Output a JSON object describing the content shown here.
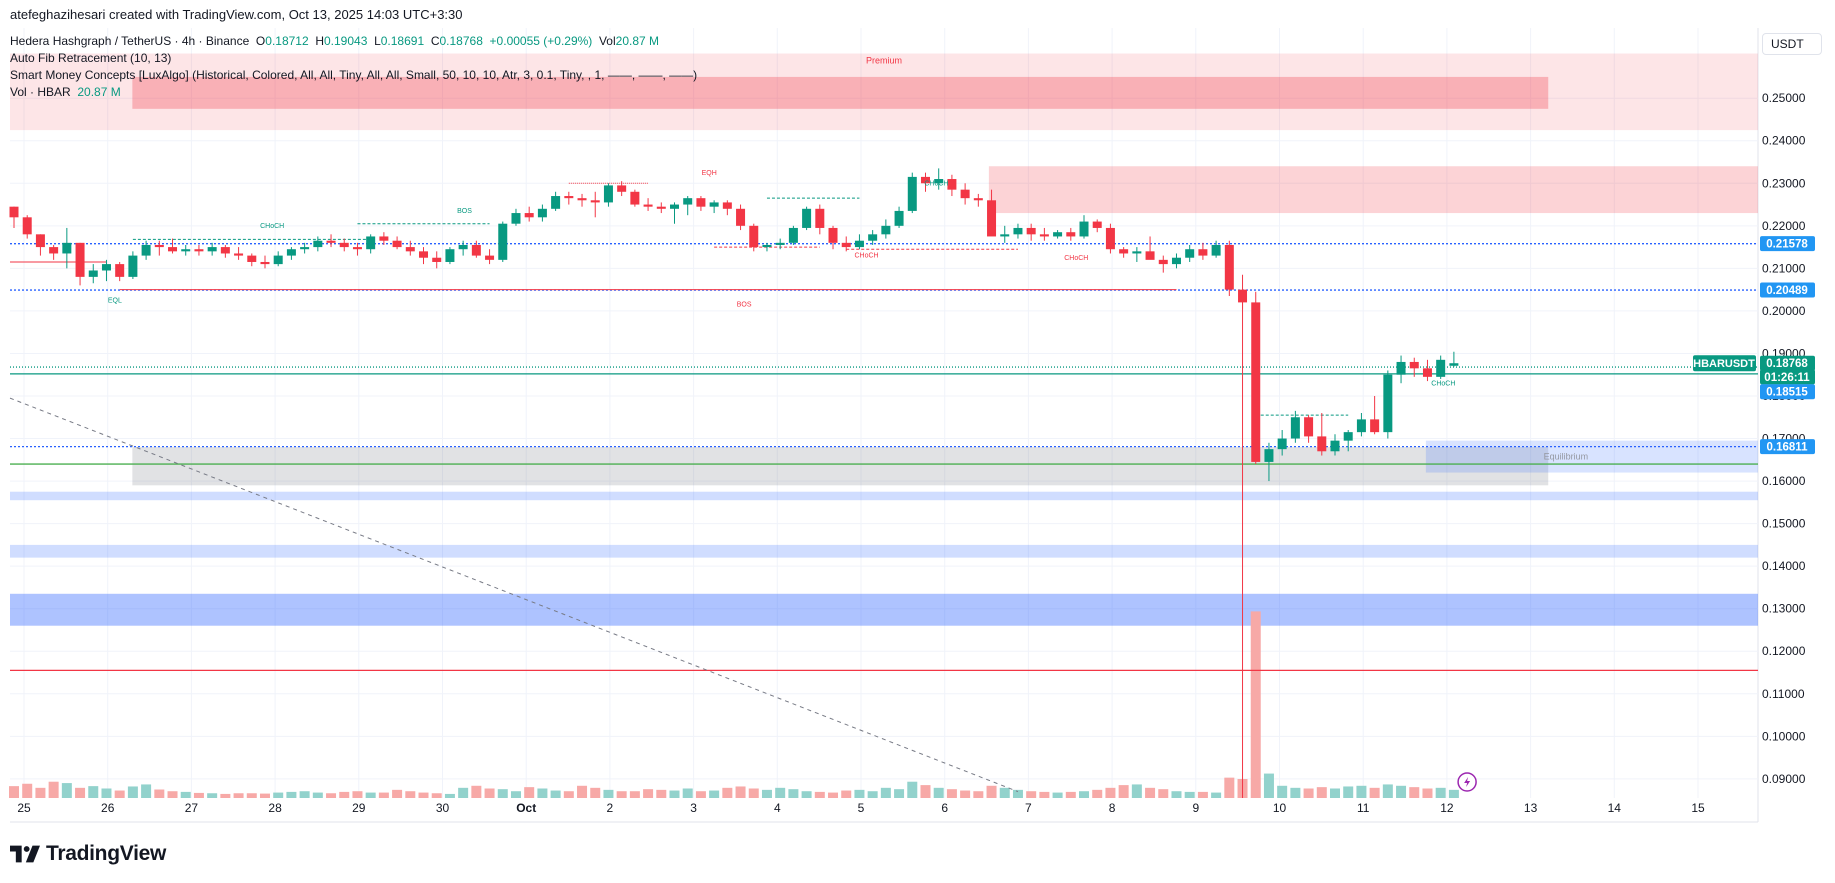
{
  "header": {
    "author_line": "atefeghazihesari created with TradingView.com, Oct 13, 2025 14:03 UTC+3:30"
  },
  "legend": {
    "title": "Hedera Hashgraph / TetherUS · 4h · Binance",
    "o_label": "O",
    "o": "0.18712",
    "h_label": "H",
    "h": "0.19043",
    "l_label": "L",
    "l": "0.18691",
    "c_label": "C",
    "c": "0.18768",
    "change": "+0.00055 (+0.29%)",
    "vol_label": "Vol",
    "vol": "20.87 M",
    "fib": "Auto Fib Retracement (10, 13)",
    "smc": "Smart Money Concepts [LuxAlgo] (Historical, Colored, All, All, Tiny, All, All, Small, 50, 10, 10, Atr, 3, 0.1, Tiny, , 1, ——, ——, ——)",
    "vol_study": "Vol · HBAR",
    "vol_study_value": "20.87 M"
  },
  "currency": "USDT",
  "brand": "TradingView",
  "colors": {
    "up": "#089981",
    "down": "#f23645",
    "vol_up": "#92d2cc",
    "vol_down": "#f7a9a7",
    "blue_line": "#2962ff",
    "badge_blue": "#2196f3",
    "badge_green": "#089981"
  },
  "chart_data": {
    "type": "candlestick",
    "symbol": "HBARUSDT",
    "timeframe": "4h",
    "ylim": [
      0.0855,
      0.2665
    ],
    "y_ticks": [
      "0.25000",
      "0.24000",
      "0.23000",
      "0.22000",
      "0.21000",
      "0.20000",
      "0.19000",
      "0.18000",
      "0.17000",
      "0.16000",
      "0.15000",
      "0.14000",
      "0.13000",
      "0.12000",
      "0.11000",
      "0.10000",
      "0.09000"
    ],
    "x_ticks": [
      "25",
      "26",
      "27",
      "28",
      "29",
      "30",
      "Oct",
      "2",
      "3",
      "4",
      "5",
      "6",
      "7",
      "8",
      "9",
      "10",
      "11",
      "12",
      "13",
      "14",
      "15"
    ],
    "candles": [
      [
        0.2245,
        0.2245,
        0.2195,
        0.222
      ],
      [
        0.222,
        0.2225,
        0.217,
        0.218
      ],
      [
        0.218,
        0.218,
        0.213,
        0.215
      ],
      [
        0.215,
        0.2155,
        0.212,
        0.2135
      ],
      [
        0.2135,
        0.2195,
        0.21,
        0.216
      ],
      [
        0.216,
        0.216,
        0.206,
        0.208
      ],
      [
        0.208,
        0.211,
        0.2065,
        0.2095
      ],
      [
        0.2095,
        0.212,
        0.207,
        0.211
      ],
      [
        0.211,
        0.2115,
        0.207,
        0.208
      ],
      [
        0.208,
        0.214,
        0.2075,
        0.213
      ],
      [
        0.213,
        0.2165,
        0.212,
        0.2155
      ],
      [
        0.2155,
        0.2165,
        0.213,
        0.215
      ],
      [
        0.215,
        0.217,
        0.2135,
        0.214
      ],
      [
        0.214,
        0.2155,
        0.213,
        0.2145
      ],
      [
        0.2145,
        0.2155,
        0.213,
        0.214
      ],
      [
        0.214,
        0.216,
        0.213,
        0.215
      ],
      [
        0.215,
        0.2155,
        0.2125,
        0.2135
      ],
      [
        0.2135,
        0.215,
        0.212,
        0.213
      ],
      [
        0.213,
        0.2135,
        0.2105,
        0.2115
      ],
      [
        0.2115,
        0.213,
        0.21,
        0.211
      ],
      [
        0.211,
        0.214,
        0.2105,
        0.213
      ],
      [
        0.213,
        0.215,
        0.212,
        0.2145
      ],
      [
        0.2145,
        0.216,
        0.2135,
        0.215
      ],
      [
        0.215,
        0.2175,
        0.214,
        0.2165
      ],
      [
        0.2165,
        0.218,
        0.215,
        0.216
      ],
      [
        0.216,
        0.217,
        0.214,
        0.215
      ],
      [
        0.215,
        0.216,
        0.213,
        0.2145
      ],
      [
        0.2145,
        0.218,
        0.2135,
        0.2175
      ],
      [
        0.2175,
        0.2185,
        0.2155,
        0.2165
      ],
      [
        0.2165,
        0.2175,
        0.2145,
        0.215
      ],
      [
        0.215,
        0.2165,
        0.213,
        0.214
      ],
      [
        0.214,
        0.215,
        0.211,
        0.2125
      ],
      [
        0.2125,
        0.214,
        0.21,
        0.2115
      ],
      [
        0.2115,
        0.215,
        0.211,
        0.2145
      ],
      [
        0.2145,
        0.2165,
        0.213,
        0.2155
      ],
      [
        0.2155,
        0.2165,
        0.2125,
        0.213
      ],
      [
        0.213,
        0.2145,
        0.211,
        0.212
      ],
      [
        0.212,
        0.221,
        0.2115,
        0.2205
      ],
      [
        0.2205,
        0.224,
        0.22,
        0.223
      ],
      [
        0.223,
        0.2245,
        0.221,
        0.222
      ],
      [
        0.222,
        0.225,
        0.221,
        0.224
      ],
      [
        0.224,
        0.228,
        0.2235,
        0.227
      ],
      [
        0.227,
        0.228,
        0.225,
        0.2265
      ],
      [
        0.2265,
        0.2275,
        0.2245,
        0.226
      ],
      [
        0.226,
        0.228,
        0.222,
        0.2255
      ],
      [
        0.2255,
        0.23,
        0.2245,
        0.2295
      ],
      [
        0.2295,
        0.2305,
        0.227,
        0.228
      ],
      [
        0.228,
        0.2285,
        0.2245,
        0.225
      ],
      [
        0.225,
        0.2265,
        0.2235,
        0.2245
      ],
      [
        0.2245,
        0.2255,
        0.223,
        0.224
      ],
      [
        0.224,
        0.2255,
        0.2205,
        0.225
      ],
      [
        0.225,
        0.227,
        0.2225,
        0.2265
      ],
      [
        0.2265,
        0.227,
        0.2235,
        0.2245
      ],
      [
        0.2245,
        0.226,
        0.223,
        0.2255
      ],
      [
        0.2255,
        0.226,
        0.2225,
        0.224
      ],
      [
        0.224,
        0.225,
        0.219,
        0.22
      ],
      [
        0.22,
        0.2205,
        0.214,
        0.215
      ],
      [
        0.215,
        0.216,
        0.214,
        0.2155
      ],
      [
        0.2155,
        0.217,
        0.2145,
        0.216
      ],
      [
        0.216,
        0.22,
        0.2155,
        0.2195
      ],
      [
        0.2195,
        0.2245,
        0.219,
        0.224
      ],
      [
        0.224,
        0.225,
        0.218,
        0.2195
      ],
      [
        0.2195,
        0.22,
        0.2145,
        0.216
      ],
      [
        0.216,
        0.2175,
        0.214,
        0.215
      ],
      [
        0.215,
        0.218,
        0.2145,
        0.2165
      ],
      [
        0.2165,
        0.219,
        0.2155,
        0.218
      ],
      [
        0.218,
        0.2215,
        0.217,
        0.22
      ],
      [
        0.22,
        0.2245,
        0.2195,
        0.2235
      ],
      [
        0.2235,
        0.2325,
        0.223,
        0.2315
      ],
      [
        0.2315,
        0.2325,
        0.228,
        0.23
      ],
      [
        0.23,
        0.2335,
        0.2285,
        0.231
      ],
      [
        0.231,
        0.232,
        0.227,
        0.2285
      ],
      [
        0.2285,
        0.23,
        0.225,
        0.2265
      ],
      [
        0.2265,
        0.2275,
        0.2245,
        0.226
      ],
      [
        0.226,
        0.2285,
        0.218,
        0.2175
      ],
      [
        0.2175,
        0.22,
        0.216,
        0.218
      ],
      [
        0.218,
        0.2205,
        0.217,
        0.2195
      ],
      [
        0.2195,
        0.2205,
        0.2165,
        0.218
      ],
      [
        0.218,
        0.2195,
        0.2165,
        0.2175
      ],
      [
        0.2175,
        0.219,
        0.217,
        0.2185
      ],
      [
        0.2185,
        0.2195,
        0.2165,
        0.2175
      ],
      [
        0.2175,
        0.2225,
        0.217,
        0.221
      ],
      [
        0.221,
        0.2215,
        0.2185,
        0.2195
      ],
      [
        0.2195,
        0.2205,
        0.2135,
        0.2145
      ],
      [
        0.2145,
        0.215,
        0.2125,
        0.2135
      ],
      [
        0.2135,
        0.215,
        0.2115,
        0.214
      ],
      [
        0.214,
        0.2175,
        0.213,
        0.212
      ],
      [
        0.212,
        0.213,
        0.209,
        0.211
      ],
      [
        0.211,
        0.2135,
        0.21,
        0.2125
      ],
      [
        0.2125,
        0.2155,
        0.2115,
        0.2145
      ],
      [
        0.2145,
        0.216,
        0.212,
        0.213
      ],
      [
        0.213,
        0.2165,
        0.2125,
        0.2155
      ],
      [
        0.2155,
        0.2165,
        0.2035,
        0.205
      ],
      [
        0.205,
        0.2085,
        0.2005,
        0.202
      ],
      [
        0.202,
        0.2045,
        0.164,
        0.1645
      ],
      [
        0.1645,
        0.169,
        0.16,
        0.1675
      ],
      [
        0.1675,
        0.172,
        0.166,
        0.17
      ],
      [
        0.17,
        0.1765,
        0.169,
        0.175
      ],
      [
        0.175,
        0.1755,
        0.169,
        0.1705
      ],
      [
        0.1705,
        0.176,
        0.166,
        0.167
      ],
      [
        0.167,
        0.171,
        0.166,
        0.1695
      ],
      [
        0.1695,
        0.172,
        0.167,
        0.1715
      ],
      [
        0.1715,
        0.176,
        0.1705,
        0.1745
      ],
      [
        0.1745,
        0.18,
        0.171,
        0.1715
      ],
      [
        0.1715,
        0.186,
        0.17,
        0.185
      ],
      [
        0.185,
        0.1895,
        0.183,
        0.188
      ],
      [
        0.188,
        0.189,
        0.1845,
        0.1865
      ],
      [
        0.1865,
        0.1885,
        0.1835,
        0.1845
      ],
      [
        0.1845,
        0.1895,
        0.184,
        0.1885
      ],
      [
        0.1871,
        0.1904,
        0.1869,
        0.1877
      ]
    ],
    "volume": [
      35,
      42,
      30,
      48,
      44,
      30,
      35,
      28,
      22,
      34,
      40,
      25,
      20,
      18,
      15,
      14,
      12,
      14,
      14,
      13,
      16,
      18,
      20,
      16,
      14,
      18,
      20,
      16,
      16,
      24,
      20,
      16,
      14,
      12,
      30,
      36,
      28,
      26,
      20,
      32,
      28,
      22,
      20,
      36,
      30,
      24,
      20,
      20,
      26,
      24,
      22,
      28,
      20,
      22,
      30,
      34,
      28,
      24,
      30,
      26,
      20,
      18,
      16,
      22,
      24,
      20,
      30,
      26,
      48,
      38,
      30,
      26,
      22,
      20,
      36,
      30,
      24,
      20,
      18,
      16,
      18,
      20,
      24,
      30,
      38,
      40,
      30,
      26,
      20,
      18,
      18,
      16,
      60,
      56,
      550,
      72,
      36,
      30,
      28,
      32,
      28,
      34,
      36,
      30,
      40,
      36,
      32,
      28,
      30,
      24
    ],
    "volume_scale_max": 560,
    "zones": [
      {
        "from": 0.2425,
        "to": 0.2605,
        "color": "#f23645",
        "opacity": 0.13,
        "x0": 0,
        "x1": 1,
        "label": "Premium"
      },
      {
        "from": 0.2475,
        "to": 0.255,
        "color": "#f23645",
        "opacity": 0.3,
        "x0": 0.07,
        "x1": 0.88,
        "label": ""
      },
      {
        "from": 0.223,
        "to": 0.234,
        "color": "#f23645",
        "opacity": 0.22,
        "x0": 0.56,
        "x1": 1,
        "label": ""
      },
      {
        "from": 0.159,
        "to": 0.168,
        "color": "#787b86",
        "opacity": 0.22,
        "x0": 0.07,
        "x1": 0.88,
        "label": ""
      },
      {
        "from": 0.162,
        "to": 0.1695,
        "color": "#2962ff",
        "opacity": 0.18,
        "x0": 0.81,
        "x1": 1,
        "label": "Equilibrium"
      },
      {
        "from": 0.1555,
        "to": 0.1575,
        "color": "#2962ff",
        "opacity": 0.22,
        "x0": 0,
        "x1": 1,
        "label": ""
      },
      {
        "from": 0.142,
        "to": 0.145,
        "color": "#2962ff",
        "opacity": 0.22,
        "x0": 0,
        "x1": 1,
        "label": ""
      },
      {
        "from": 0.126,
        "to": 0.1335,
        "color": "#2962ff",
        "opacity": 0.38,
        "x0": 0,
        "x1": 1,
        "label": ""
      }
    ],
    "h_lines": [
      {
        "price": 0.2158,
        "color": "#2962ff",
        "dash": "2,2"
      },
      {
        "price": 0.2049,
        "color": "#2962ff",
        "dash": "2,2"
      },
      {
        "price": 0.1868,
        "color": "#089981",
        "dash": "1,2"
      },
      {
        "price": 0.1852,
        "color": "#089981",
        "dash": ""
      },
      {
        "price": 0.1681,
        "color": "#2962ff",
        "dash": "2,2"
      },
      {
        "price": 0.164,
        "color": "#4caf50",
        "dash": ""
      },
      {
        "price": 0.1155,
        "color": "#f23645",
        "dash": ""
      }
    ],
    "annotations": [
      {
        "text": "CHoCH",
        "color": "#089981",
        "x": 0.15,
        "price": 0.2195
      },
      {
        "text": "BOS",
        "color": "#089981",
        "x": 0.26,
        "price": 0.223
      },
      {
        "text": "EQH",
        "color": "#f23645",
        "x": 0.4,
        "price": 0.232
      },
      {
        "text": "CHoCH",
        "color": "#089981",
        "x": 0.53,
        "price": 0.2295
      },
      {
        "text": "EQL",
        "color": "#089981",
        "x": 0.06,
        "price": 0.202
      },
      {
        "text": "BOS",
        "color": "#f23645",
        "x": 0.42,
        "price": 0.201
      },
      {
        "text": "CHoCH",
        "color": "#f23645",
        "x": 0.49,
        "price": 0.2125
      },
      {
        "text": "CHoCH",
        "color": "#f23645",
        "x": 0.61,
        "price": 0.212
      },
      {
        "text": "CHoCH",
        "color": "#089981",
        "x": 0.82,
        "price": 0.1825
      }
    ],
    "price_badges": [
      {
        "text": "0.21578",
        "price": 0.2158,
        "color": "#2196f3"
      },
      {
        "text": "0.20489",
        "price": 0.2049,
        "color": "#2196f3"
      },
      {
        "text": "0.18768",
        "price": 0.1877,
        "color": "#089981"
      },
      {
        "text": "01:26:11",
        "price": 0.1845,
        "color": "#089981"
      },
      {
        "text": "0.18515",
        "price": 0.181,
        "color": "#2196f3"
      },
      {
        "text": "0.16811",
        "price": 0.1681,
        "color": "#2196f3"
      }
    ],
    "symbol_badge": "HBARUSDT",
    "grid": true
  }
}
